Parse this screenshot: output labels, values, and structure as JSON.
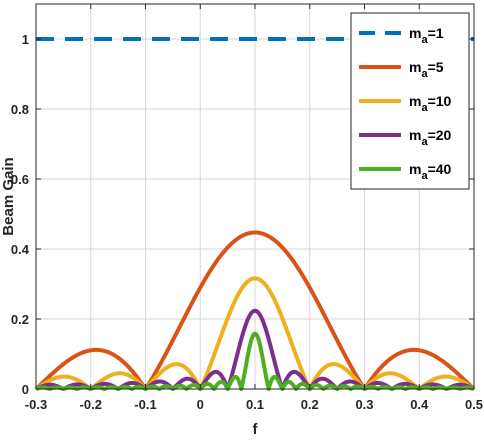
{
  "chart_data": {
    "type": "line",
    "title": "",
    "xlabel": "f",
    "ylabel": "Beam Gain",
    "xlim": [
      -0.3,
      0.5
    ],
    "ylim": [
      0,
      1.1
    ],
    "xticks": [
      -0.3,
      -0.2,
      -0.1,
      0,
      0.1,
      0.2,
      0.3,
      0.4,
      0.5
    ],
    "xtick_labels": [
      "-0.3",
      "-0.2",
      "-0.1",
      "0",
      "0.1",
      "0.2",
      "0.3",
      "0.4",
      "0.5"
    ],
    "yticks": [
      0,
      0.2,
      0.4,
      0.6,
      0.8,
      1
    ],
    "ytick_labels": [
      "0",
      "0.2",
      "0.4",
      "0.6",
      "0.8",
      "1"
    ],
    "grid": true,
    "legend_position": "top-right",
    "main_lobe_center": 0.1,
    "series": [
      {
        "name": "1",
        "m_a": 1,
        "color": "#0072BD",
        "style": "dashed"
      },
      {
        "name": "5",
        "m_a": 5,
        "color": "#D95319",
        "style": "solid"
      },
      {
        "name": "10",
        "m_a": 10,
        "color": "#EDB120",
        "style": "solid"
      },
      {
        "name": "20",
        "m_a": 20,
        "color": "#7E2F8E",
        "style": "solid"
      },
      {
        "name": "40",
        "m_a": 40,
        "color": "#4DAF1F",
        "style": "solid"
      }
    ],
    "legend_prefix": "m",
    "legend_subscript": "a",
    "legend_separator": "="
  }
}
